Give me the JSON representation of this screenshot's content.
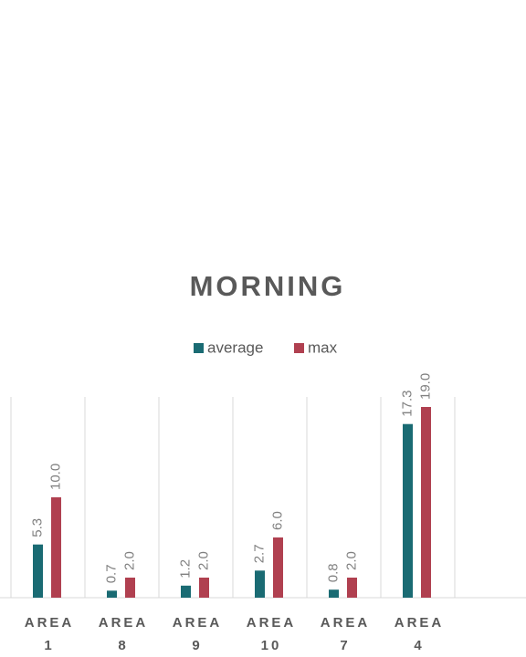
{
  "chart_data": {
    "type": "bar",
    "title": "MORNING",
    "categories": [
      "AREA 1",
      "AREA 8",
      "AREA 9",
      "AREA 10",
      "AREA 7",
      "AREA 4",
      null
    ],
    "series": [
      {
        "name": "average",
        "color": "#1a6b73",
        "values": [
          5.3,
          0.7,
          1.2,
          2.7,
          0.8,
          17.3,
          null
        ],
        "value_labels": [
          "5.3",
          "0.7",
          "1.2",
          "2.7",
          "0.8",
          "17.3",
          null
        ]
      },
      {
        "name": "max",
        "color": "#b04050",
        "values": [
          10,
          2,
          2,
          6,
          2,
          19,
          null
        ],
        "value_labels": [
          "10.0",
          "2.0",
          "2.0",
          "6.0",
          "2.0",
          "19.0",
          null
        ]
      }
    ],
    "ylim": [
      0,
      20
    ],
    "legend": "top"
  }
}
